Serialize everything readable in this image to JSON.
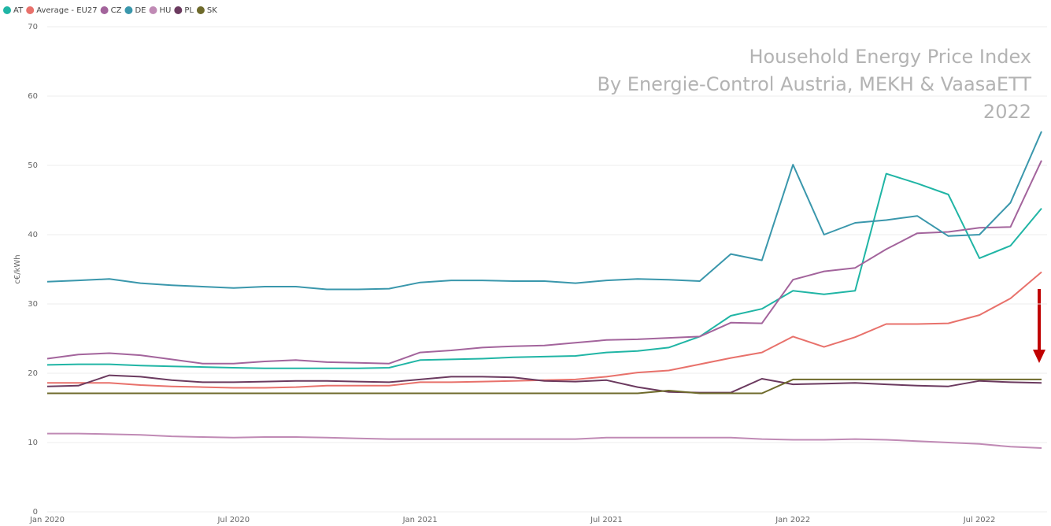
{
  "chart_data": {
    "type": "line",
    "annotation": [
      "Household Energy Price Index",
      "By Energie-Control Austria, MEKH & VaasaETT",
      "2022"
    ],
    "y_label": "c€/kWh",
    "categories": [
      "Jan 2020",
      null,
      null,
      null,
      null,
      null,
      "Jul 2020",
      null,
      null,
      null,
      null,
      null,
      "Jan 2021",
      null,
      null,
      null,
      null,
      null,
      "Jul 2021",
      null,
      null,
      null,
      null,
      null,
      "Jan 2022",
      null,
      null,
      null,
      null,
      null,
      "Jul 2022",
      null,
      null
    ],
    "ylim": [
      0,
      70
    ],
    "yticks": [
      0,
      10,
      20,
      30,
      40,
      50,
      60,
      70
    ],
    "grid": true,
    "legend": "top-left",
    "series": [
      {
        "name": "AT",
        "color": "#20b5a5",
        "values": [
          21.2,
          21.3,
          21.3,
          21.1,
          21.0,
          20.9,
          20.8,
          20.7,
          20.7,
          20.7,
          20.7,
          20.8,
          21.9,
          22.0,
          22.1,
          22.3,
          22.4,
          22.5,
          23.0,
          23.2,
          23.7,
          25.3,
          28.3,
          29.3,
          31.9,
          31.4,
          31.9,
          48.8,
          47.4,
          45.8,
          36.6,
          38.4,
          43.8
        ]
      },
      {
        "name": "Average - EU27",
        "color": "#e8716b",
        "values": [
          18.6,
          18.6,
          18.6,
          18.3,
          18.1,
          18.0,
          17.9,
          17.9,
          18.0,
          18.2,
          18.2,
          18.2,
          18.7,
          18.7,
          18.8,
          18.9,
          19.0,
          19.1,
          19.5,
          20.1,
          20.4,
          21.3,
          22.2,
          23.0,
          25.3,
          23.8,
          25.2,
          27.1,
          27.1,
          27.2,
          28.4,
          30.8,
          34.6
        ]
      },
      {
        "name": "CZ",
        "color": "#a3649c",
        "values": [
          22.1,
          22.7,
          22.9,
          22.6,
          22.0,
          21.4,
          21.4,
          21.7,
          21.9,
          21.6,
          21.5,
          21.4,
          23.0,
          23.3,
          23.7,
          23.9,
          24.0,
          24.4,
          24.8,
          24.9,
          25.1,
          25.3,
          27.3,
          27.2,
          33.5,
          34.7,
          35.2,
          37.9,
          40.2,
          40.4,
          41.0,
          41.1,
          50.7
        ]
      },
      {
        "name": "DE",
        "color": "#3a97ac",
        "values": [
          33.2,
          33.4,
          33.6,
          33.0,
          32.7,
          32.5,
          32.3,
          32.5,
          32.5,
          32.1,
          32.1,
          32.2,
          33.1,
          33.4,
          33.4,
          33.3,
          33.3,
          33.0,
          33.4,
          33.6,
          33.5,
          33.3,
          37.2,
          36.3,
          50.1,
          40.0,
          41.7,
          42.1,
          42.7,
          39.8,
          40.0,
          44.6,
          54.9
        ]
      },
      {
        "name": "HU",
        "color": "#c08ab5",
        "values": [
          11.3,
          11.3,
          11.2,
          11.1,
          10.9,
          10.8,
          10.7,
          10.8,
          10.8,
          10.7,
          10.6,
          10.5,
          10.5,
          10.5,
          10.5,
          10.5,
          10.5,
          10.5,
          10.7,
          10.7,
          10.7,
          10.7,
          10.7,
          10.5,
          10.4,
          10.4,
          10.5,
          10.4,
          10.2,
          10.0,
          9.8,
          9.4,
          9.2
        ]
      },
      {
        "name": "PL",
        "color": "#6b3a5f",
        "values": [
          18.1,
          18.2,
          19.7,
          19.5,
          19.0,
          18.7,
          18.7,
          18.8,
          18.9,
          18.9,
          18.8,
          18.7,
          19.1,
          19.5,
          19.5,
          19.4,
          18.9,
          18.8,
          19.0,
          18.0,
          17.3,
          17.2,
          17.2,
          19.2,
          18.4,
          18.5,
          18.6,
          18.4,
          18.2,
          18.1,
          18.9,
          18.7,
          18.6
        ]
      },
      {
        "name": "SK",
        "color": "#6e6a2b",
        "values": [
          17.1,
          17.1,
          17.1,
          17.1,
          17.1,
          17.1,
          17.1,
          17.1,
          17.1,
          17.1,
          17.1,
          17.1,
          17.1,
          17.1,
          17.1,
          17.1,
          17.1,
          17.1,
          17.1,
          17.1,
          17.5,
          17.1,
          17.1,
          17.1,
          19.1,
          19.1,
          19.1,
          19.1,
          19.1,
          19.1,
          19.1,
          19.1,
          19.1
        ]
      }
    ]
  }
}
